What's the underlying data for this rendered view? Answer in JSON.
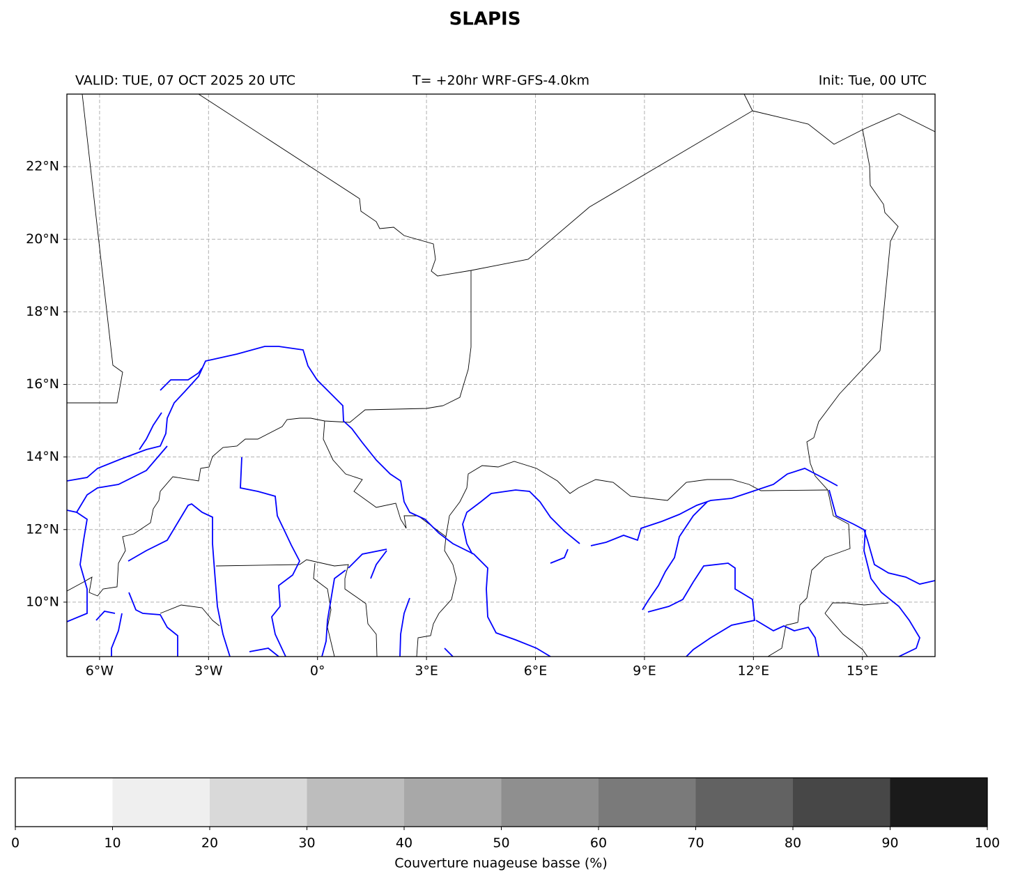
{
  "title": "SLAPIS",
  "valid": "VALID: TUE, 07 OCT 2025 20 UTC",
  "lead": "T= +20hr WRF-GFS-4.0km",
  "init": "Init: Tue, 00 UTC",
  "map": {
    "xlim": [
      -6.9,
      17.0
    ],
    "ylim": [
      8.5,
      24.0
    ],
    "xticks": [
      {
        "value": -6,
        "label": "6°W"
      },
      {
        "value": -3,
        "label": "3°W"
      },
      {
        "value": 0,
        "label": "0°"
      },
      {
        "value": 3,
        "label": "3°E"
      },
      {
        "value": 6,
        "label": "6°E"
      },
      {
        "value": 9,
        "label": "9°E"
      },
      {
        "value": 12,
        "label": "12°E"
      },
      {
        "value": 15,
        "label": "15°E"
      }
    ],
    "yticks": [
      {
        "value": 10,
        "label": "10°N"
      },
      {
        "value": 12,
        "label": "12°N"
      },
      {
        "value": 14,
        "label": "14°N"
      },
      {
        "value": 16,
        "label": "16°N"
      },
      {
        "value": 18,
        "label": "18°N"
      },
      {
        "value": 20,
        "label": "20°N"
      },
      {
        "value": 22,
        "label": "22°N"
      }
    ],
    "grid": true
  },
  "colorbar": {
    "label": "Couverture nuageuse basse (%)",
    "levels": [
      0,
      10,
      20,
      30,
      40,
      50,
      60,
      70,
      80,
      90,
      100
    ],
    "colors": [
      "#ffffff",
      "#efefef",
      "#d9d9d9",
      "#bdbdbd",
      "#a8a8a8",
      "#8f8f8f",
      "#7a7a7a",
      "#626262",
      "#474747",
      "#1a1a1a"
    ]
  }
}
